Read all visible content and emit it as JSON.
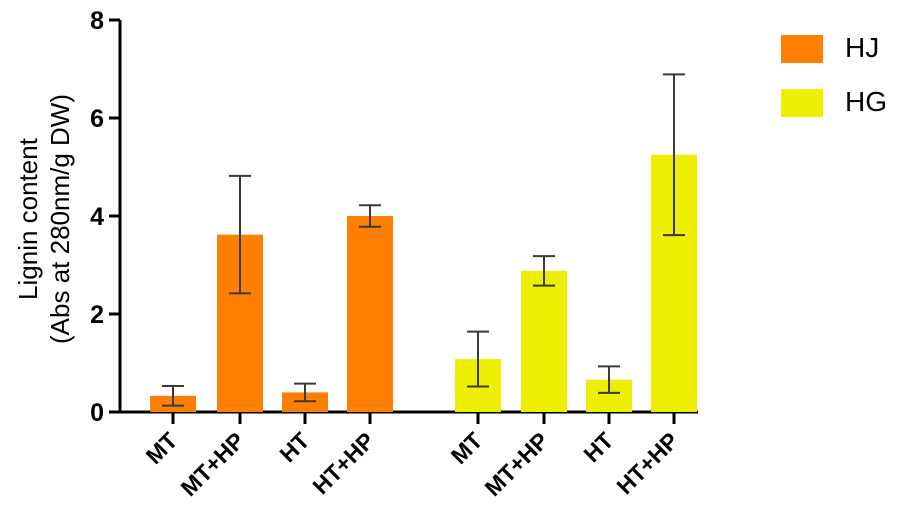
{
  "chart_data": {
    "type": "bar",
    "ylabel_line1": "Lignin content",
    "ylabel_line2": "(Abs at 280nm/g DW)",
    "ylim": [
      0,
      8
    ],
    "yticks": [
      0,
      2,
      4,
      6,
      8
    ],
    "grid": false,
    "legend_position": "top-right",
    "groups": [
      {
        "series": "HJ",
        "color": "#ff7f00",
        "categories": [
          "MT",
          "MT+HP",
          "HT",
          "HT+HP"
        ],
        "values": [
          0.33,
          3.62,
          0.4,
          4.0
        ],
        "errors": [
          0.2,
          1.2,
          0.18,
          0.22
        ]
      },
      {
        "series": "HG",
        "color": "#eeee00",
        "categories": [
          "MT",
          "MT+HP",
          "HT",
          "HT+HP"
        ],
        "values": [
          1.08,
          2.88,
          0.66,
          5.25
        ],
        "errors": [
          0.56,
          0.3,
          0.27,
          1.64
        ]
      }
    ],
    "legend": [
      {
        "name": "HJ",
        "color": "#ff7f00"
      },
      {
        "name": "HG",
        "color": "#eeee00"
      }
    ]
  }
}
